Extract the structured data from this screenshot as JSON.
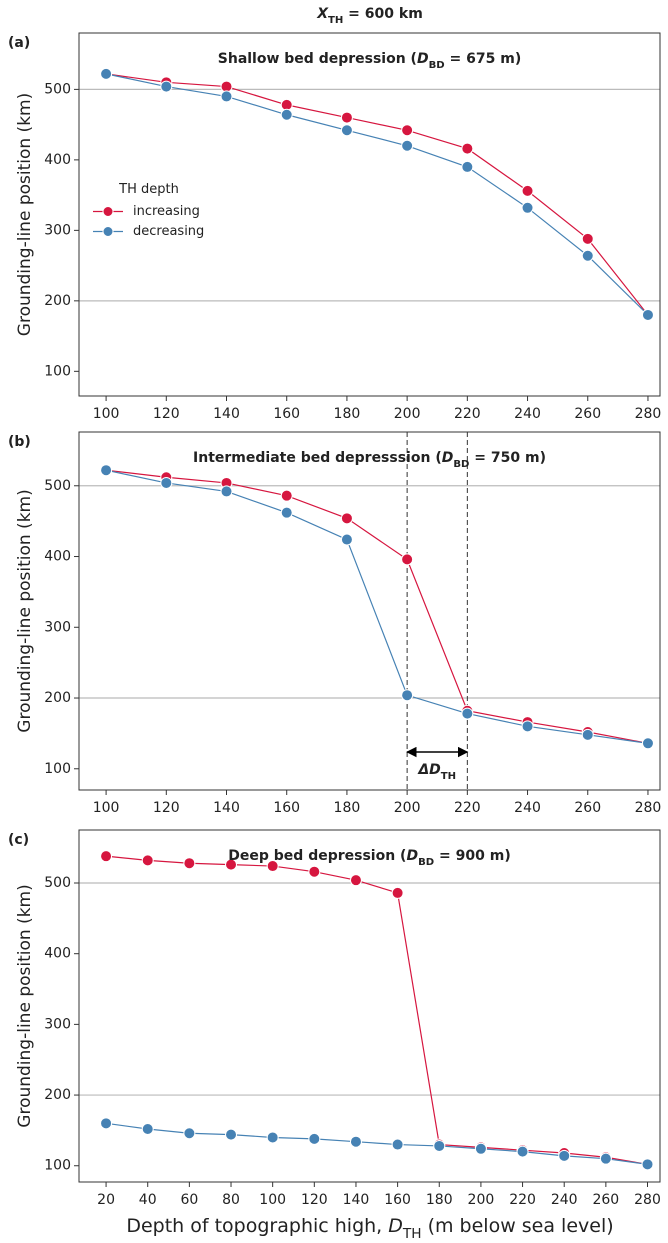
{
  "title": [
    "X",
    "TH",
    "  = 600 km"
  ],
  "xlabel": [
    "Depth of topographic high, ",
    "D",
    "TH",
    " (m below sea level)"
  ],
  "chart_data": [
    {
      "type": "line",
      "panel_label": "(a)",
      "title": [
        "Shallow bed depression (",
        "D",
        "BD",
        " = 675 m)"
      ],
      "ylabel": "Grounding-line position (km)",
      "x": [
        100,
        120,
        140,
        160,
        180,
        200,
        220,
        240,
        260,
        280
      ],
      "xlim": [
        91,
        284
      ],
      "xticks": [
        100,
        120,
        140,
        160,
        180,
        200,
        220,
        240,
        260,
        280
      ],
      "ylim": [
        65,
        580
      ],
      "yticks": [
        100,
        200,
        300,
        400,
        500
      ],
      "hlines": [
        200,
        500
      ],
      "legend": {
        "title": "TH depth",
        "loc": "center left"
      },
      "series": [
        {
          "name": "increasing",
          "color": "#d6163f",
          "values": [
            522,
            510,
            504,
            478,
            460,
            442,
            416,
            356,
            288,
            180
          ]
        },
        {
          "name": "decreasing",
          "color": "#4682b4",
          "values": [
            522,
            504,
            490,
            464,
            442,
            420,
            390,
            332,
            264,
            180
          ]
        }
      ]
    },
    {
      "type": "line",
      "panel_label": "(b)",
      "title": [
        "Intermediate bed depresssion (",
        "D",
        "BD",
        " = 750 m)"
      ],
      "ylabel": "Grounding-line position (km)",
      "x": [
        100,
        120,
        140,
        160,
        180,
        200,
        220,
        240,
        260,
        280
      ],
      "xlim": [
        91,
        284
      ],
      "xticks": [
        100,
        120,
        140,
        160,
        180,
        200,
        220,
        240,
        260,
        280
      ],
      "ylim": [
        70,
        576
      ],
      "yticks": [
        100,
        200,
        300,
        400,
        500
      ],
      "hlines": [
        200,
        500
      ],
      "vlines": [
        200,
        220
      ],
      "annotation": {
        "text": [
          "ΔD",
          "TH"
        ],
        "span": [
          200,
          220
        ]
      },
      "series": [
        {
          "color": "#d6163f",
          "values": [
            522,
            512,
            504,
            486,
            454,
            396,
            182,
            166,
            152,
            136
          ]
        },
        {
          "color": "#4682b4",
          "values": [
            522,
            504,
            492,
            462,
            424,
            204,
            178,
            160,
            148,
            136
          ]
        }
      ]
    },
    {
      "type": "line",
      "panel_label": "(c)",
      "title": [
        "Deep bed depression (",
        "D",
        "BD",
        " = 900 m)"
      ],
      "ylabel": "Grounding-line position (km)",
      "x": [
        20,
        40,
        60,
        80,
        100,
        120,
        140,
        160,
        180,
        200,
        220,
        240,
        260,
        280
      ],
      "xlim": [
        7,
        286
      ],
      "xticks": [
        20,
        40,
        60,
        80,
        100,
        120,
        140,
        160,
        180,
        200,
        220,
        240,
        260,
        280
      ],
      "ylim": [
        77,
        575
      ],
      "yticks": [
        100,
        200,
        300,
        400,
        500
      ],
      "hlines": [
        200,
        500
      ],
      "series": [
        {
          "color": "#d6163f",
          "values": [
            538,
            532,
            528,
            526,
            524,
            516,
            504,
            486,
            130,
            126,
            122,
            118,
            112,
            102
          ]
        },
        {
          "color": "#4682b4",
          "values": [
            160,
            152,
            146,
            144,
            140,
            138,
            134,
            130,
            128,
            124,
            120,
            114,
            110,
            102
          ]
        }
      ]
    }
  ]
}
